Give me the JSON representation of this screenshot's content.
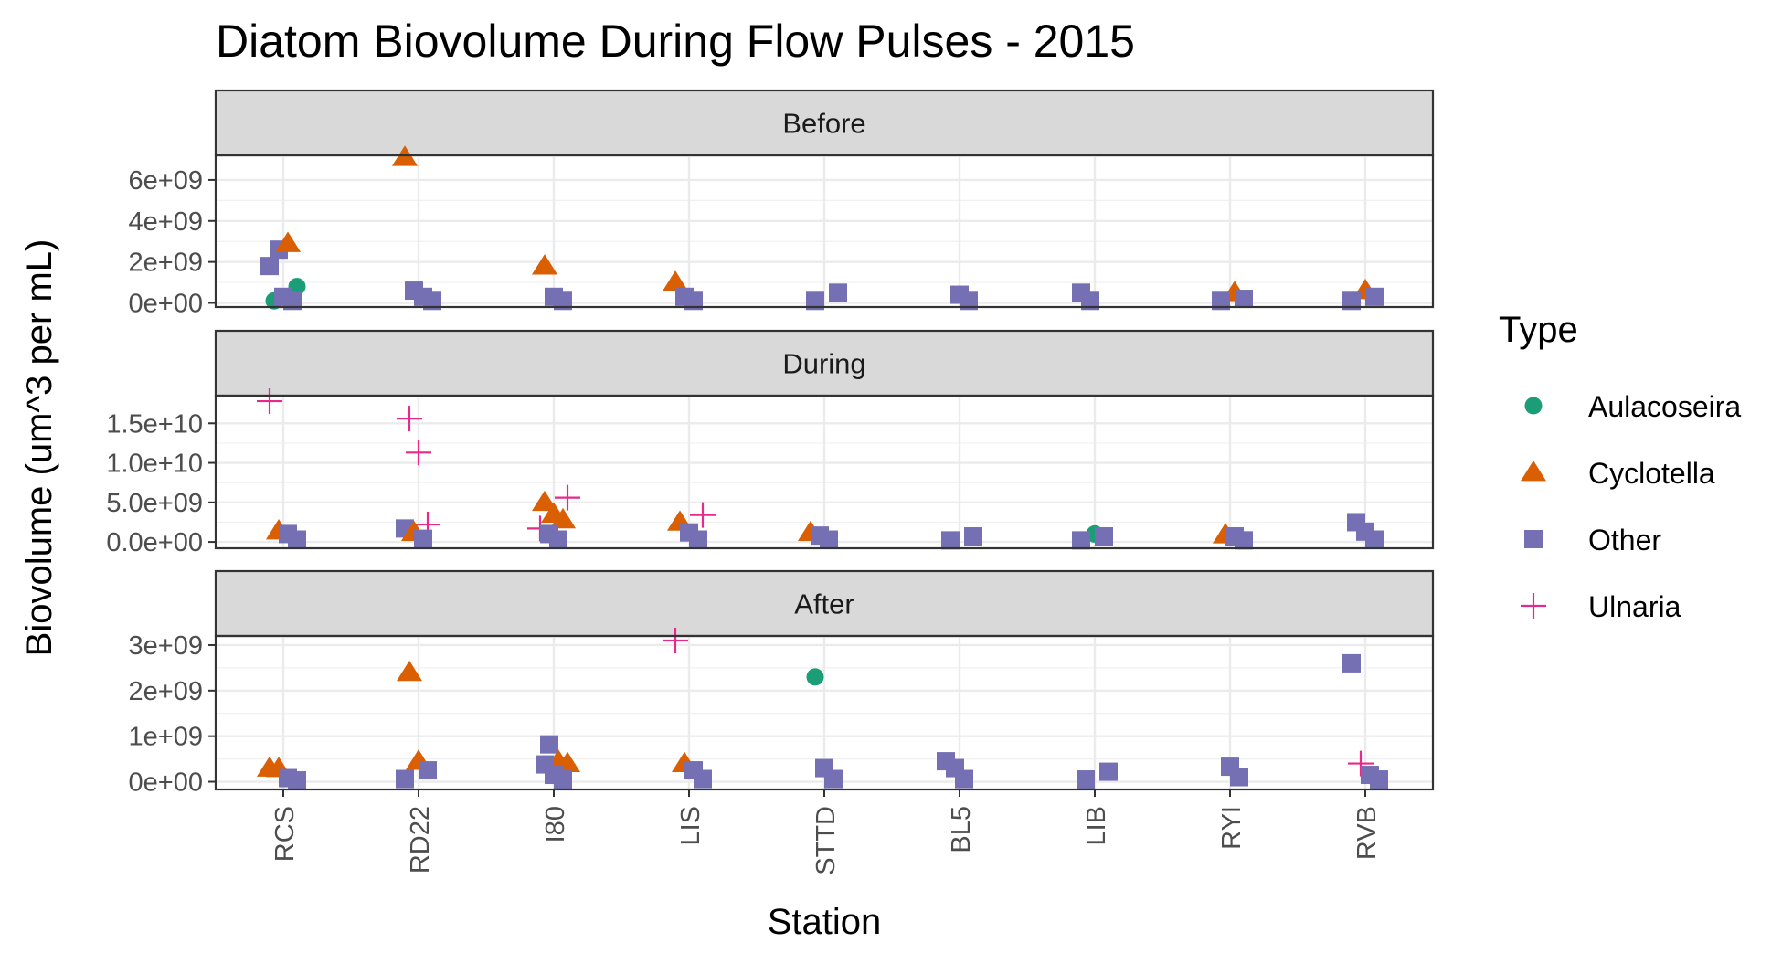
{
  "chart_data": {
    "type": "scatter",
    "title": "Diatom Biovolume During Flow Pulses - 2015",
    "xlabel": "Station",
    "ylabel": "Biovolume (um^3 per mL)",
    "categories": [
      "RCS",
      "RD22",
      "I80",
      "LIS",
      "STTD",
      "BL5",
      "LIB",
      "RYI",
      "RVB"
    ],
    "legend": {
      "title": "Type",
      "position": "right",
      "entries": [
        {
          "name": "Aulacoseira",
          "shape": "circle",
          "color": "#1b9e77"
        },
        {
          "name": "Cyclotella",
          "shape": "triangle",
          "color": "#d95f02"
        },
        {
          "name": "Other",
          "shape": "square",
          "color": "#7570b3"
        },
        {
          "name": "Ulnaria",
          "shape": "plus",
          "color": "#e7298a"
        }
      ]
    },
    "grid": true,
    "panels": [
      {
        "strip": "Before",
        "ylim": [
          -200000000,
          7200000000
        ],
        "yticks": [
          0,
          2000000000,
          4000000000,
          6000000000
        ],
        "ytick_labels": [
          "0e+00",
          "2e+09",
          "4e+09",
          "6e+09"
        ],
        "points": [
          {
            "station": "RCS",
            "type": "Other",
            "y": 1800000000
          },
          {
            "station": "RCS",
            "type": "Other",
            "y": 2600000000
          },
          {
            "station": "RCS",
            "type": "Cyclotella",
            "y": 2900000000
          },
          {
            "station": "RCS",
            "type": "Aulacoseira",
            "y": 800000000
          },
          {
            "station": "RCS",
            "type": "Aulacoseira",
            "y": 100000000
          },
          {
            "station": "RCS",
            "type": "Other",
            "y": 300000000
          },
          {
            "station": "RCS",
            "type": "Other",
            "y": 100000000
          },
          {
            "station": "RD22",
            "type": "Cyclotella",
            "y": 7100000000
          },
          {
            "station": "RD22",
            "type": "Other",
            "y": 600000000
          },
          {
            "station": "RD22",
            "type": "Other",
            "y": 300000000
          },
          {
            "station": "RD22",
            "type": "Other",
            "y": 100000000
          },
          {
            "station": "I80",
            "type": "Cyclotella",
            "y": 1800000000
          },
          {
            "station": "I80",
            "type": "Other",
            "y": 300000000
          },
          {
            "station": "I80",
            "type": "Other",
            "y": 100000000
          },
          {
            "station": "LIS",
            "type": "Cyclotella",
            "y": 1000000000
          },
          {
            "station": "LIS",
            "type": "Other",
            "y": 300000000
          },
          {
            "station": "LIS",
            "type": "Other",
            "y": 100000000
          },
          {
            "station": "STTD",
            "type": "Other",
            "y": 500000000
          },
          {
            "station": "STTD",
            "type": "Other",
            "y": 100000000
          },
          {
            "station": "BL5",
            "type": "Other",
            "y": 400000000
          },
          {
            "station": "BL5",
            "type": "Other",
            "y": 100000000
          },
          {
            "station": "LIB",
            "type": "Other",
            "y": 500000000
          },
          {
            "station": "LIB",
            "type": "Other",
            "y": 100000000
          },
          {
            "station": "RYI",
            "type": "Cyclotella",
            "y": 500000000
          },
          {
            "station": "RYI",
            "type": "Other",
            "y": 200000000
          },
          {
            "station": "RYI",
            "type": "Other",
            "y": 100000000
          },
          {
            "station": "RVB",
            "type": "Cyclotella",
            "y": 600000000
          },
          {
            "station": "RVB",
            "type": "Other",
            "y": 300000000
          },
          {
            "station": "RVB",
            "type": "Other",
            "y": 100000000
          }
        ]
      },
      {
        "strip": "During",
        "ylim": [
          -800000000,
          18500000000
        ],
        "yticks": [
          0,
          5000000000,
          10000000000,
          15000000000
        ],
        "ytick_labels": [
          "0.0e+00",
          "5.0e+09",
          "1.0e+10",
          "1.5e+10"
        ],
        "points": [
          {
            "station": "RCS",
            "type": "Ulnaria",
            "y": 17800000000
          },
          {
            "station": "RCS",
            "type": "Cyclotella",
            "y": 1400000000
          },
          {
            "station": "RCS",
            "type": "Other",
            "y": 1000000000
          },
          {
            "station": "RCS",
            "type": "Other",
            "y": 300000000
          },
          {
            "station": "RD22",
            "type": "Ulnaria",
            "y": 15600000000
          },
          {
            "station": "RD22",
            "type": "Ulnaria",
            "y": 11300000000
          },
          {
            "station": "RD22",
            "type": "Ulnaria",
            "y": 2200000000
          },
          {
            "station": "RD22",
            "type": "Other",
            "y": 1700000000
          },
          {
            "station": "RD22",
            "type": "Cyclotella",
            "y": 1200000000
          },
          {
            "station": "RD22",
            "type": "Other",
            "y": 400000000
          },
          {
            "station": "I80",
            "type": "Ulnaria",
            "y": 5600000000
          },
          {
            "station": "I80",
            "type": "Cyclotella",
            "y": 5000000000
          },
          {
            "station": "I80",
            "type": "Cyclotella",
            "y": 3500000000
          },
          {
            "station": "I80",
            "type": "Cyclotella",
            "y": 2800000000
          },
          {
            "station": "I80",
            "type": "Ulnaria",
            "y": 1700000000
          },
          {
            "station": "I80",
            "type": "Other",
            "y": 1000000000
          },
          {
            "station": "I80",
            "type": "Other",
            "y": 300000000
          },
          {
            "station": "LIS",
            "type": "Ulnaria",
            "y": 3400000000
          },
          {
            "station": "LIS",
            "type": "Cyclotella",
            "y": 2500000000
          },
          {
            "station": "LIS",
            "type": "Other",
            "y": 1200000000
          },
          {
            "station": "LIS",
            "type": "Other",
            "y": 300000000
          },
          {
            "station": "STTD",
            "type": "Cyclotella",
            "y": 1200000000
          },
          {
            "station": "STTD",
            "type": "Other",
            "y": 800000000
          },
          {
            "station": "STTD",
            "type": "Other",
            "y": 300000000
          },
          {
            "station": "BL5",
            "type": "Other",
            "y": 700000000
          },
          {
            "station": "BL5",
            "type": "Other",
            "y": 200000000
          },
          {
            "station": "LIB",
            "type": "Aulacoseira",
            "y": 1000000000
          },
          {
            "station": "LIB",
            "type": "Other",
            "y": 700000000
          },
          {
            "station": "LIB",
            "type": "Other",
            "y": 200000000
          },
          {
            "station": "RYI",
            "type": "Cyclotella",
            "y": 900000000
          },
          {
            "station": "RYI",
            "type": "Other",
            "y": 700000000
          },
          {
            "station": "RYI",
            "type": "Other",
            "y": 200000000
          },
          {
            "station": "RVB",
            "type": "Other",
            "y": 2500000000
          },
          {
            "station": "RVB",
            "type": "Other",
            "y": 1300000000
          },
          {
            "station": "RVB",
            "type": "Other",
            "y": 300000000
          }
        ]
      },
      {
        "strip": "After",
        "ylim": [
          -170000000,
          3200000000
        ],
        "yticks": [
          0,
          1000000000,
          2000000000,
          3000000000
        ],
        "ytick_labels": [
          "0e+00",
          "1e+09",
          "2e+09",
          "3e+09"
        ],
        "points": [
          {
            "station": "RCS",
            "type": "Cyclotella",
            "y": 300000000
          },
          {
            "station": "RCS",
            "type": "Cyclotella",
            "y": 290000000
          },
          {
            "station": "RCS",
            "type": "Other",
            "y": 80000000
          },
          {
            "station": "RCS",
            "type": "Other",
            "y": 30000000
          },
          {
            "station": "RD22",
            "type": "Cyclotella",
            "y": 2400000000
          },
          {
            "station": "RD22",
            "type": "Cyclotella",
            "y": 450000000
          },
          {
            "station": "RD22",
            "type": "Other",
            "y": 250000000
          },
          {
            "station": "RD22",
            "type": "Other",
            "y": 60000000
          },
          {
            "station": "I80",
            "type": "Other",
            "y": 820000000
          },
          {
            "station": "I80",
            "type": "Cyclotella",
            "y": 450000000
          },
          {
            "station": "I80",
            "type": "Cyclotella",
            "y": 400000000
          },
          {
            "station": "I80",
            "type": "Other",
            "y": 380000000
          },
          {
            "station": "I80",
            "type": "Other",
            "y": 150000000
          },
          {
            "station": "I80",
            "type": "Other",
            "y": 50000000
          },
          {
            "station": "LIS",
            "type": "Ulnaria",
            "y": 3100000000
          },
          {
            "station": "LIS",
            "type": "Cyclotella",
            "y": 400000000
          },
          {
            "station": "LIS",
            "type": "Other",
            "y": 250000000
          },
          {
            "station": "LIS",
            "type": "Other",
            "y": 60000000
          },
          {
            "station": "STTD",
            "type": "Aulacoseira",
            "y": 2300000000
          },
          {
            "station": "STTD",
            "type": "Other",
            "y": 300000000
          },
          {
            "station": "STTD",
            "type": "Other",
            "y": 60000000
          },
          {
            "station": "BL5",
            "type": "Other",
            "y": 450000000
          },
          {
            "station": "BL5",
            "type": "Other",
            "y": 300000000
          },
          {
            "station": "BL5",
            "type": "Other",
            "y": 60000000
          },
          {
            "station": "LIB",
            "type": "Other",
            "y": 220000000
          },
          {
            "station": "LIB",
            "type": "Other",
            "y": 50000000
          },
          {
            "station": "RYI",
            "type": "Other",
            "y": 330000000
          },
          {
            "station": "RYI",
            "type": "Other",
            "y": 100000000
          },
          {
            "station": "RVB",
            "type": "Other",
            "y": 2600000000
          },
          {
            "station": "RVB",
            "type": "Ulnaria",
            "y": 400000000
          },
          {
            "station": "RVB",
            "type": "Other",
            "y": 150000000
          },
          {
            "station": "RVB",
            "type": "Other",
            "y": 50000000
          }
        ]
      }
    ]
  }
}
